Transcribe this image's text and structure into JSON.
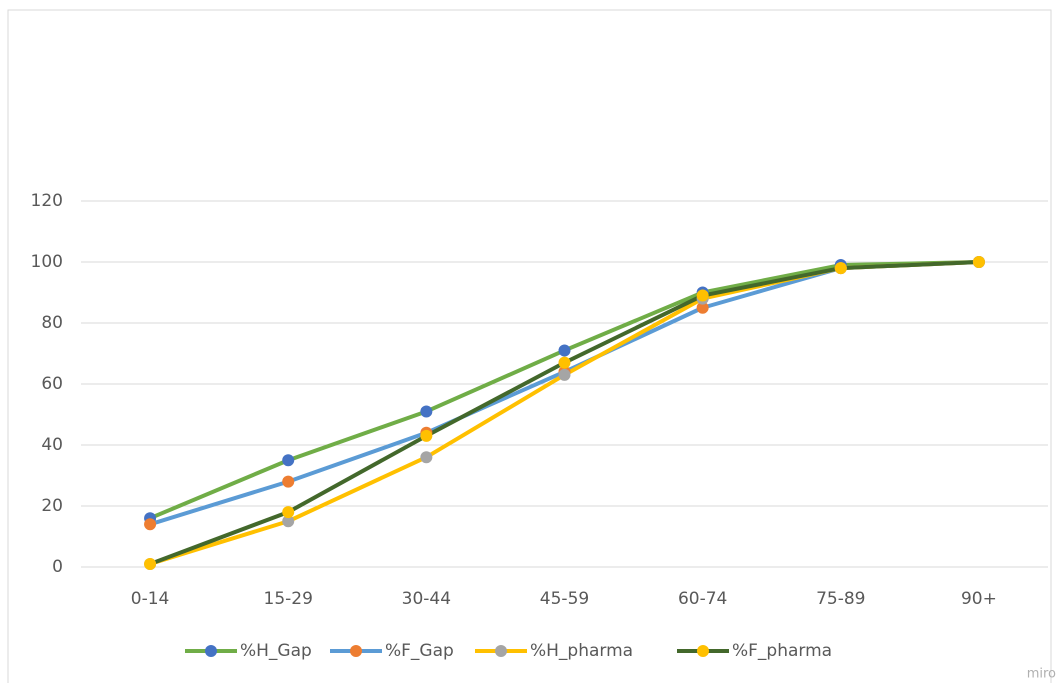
{
  "chart_data": {
    "type": "line",
    "categories": [
      "0-14",
      "15-29",
      "30-44",
      "45-59",
      "60-74",
      "75-89",
      "90+"
    ],
    "series": [
      {
        "name": "%H_Gap",
        "color": "#70ad47",
        "marker_color": "#4472c4",
        "values": [
          16,
          35,
          51,
          71,
          90,
          99,
          100
        ]
      },
      {
        "name": "%F_Gap",
        "color": "#5b9bd5",
        "marker_color": "#ed7d31",
        "values": [
          14,
          28,
          44,
          64,
          85,
          98,
          100
        ]
      },
      {
        "name": "%H_pharma",
        "color": "#ffc000",
        "marker_color": "#a5a5a5",
        "values": [
          1,
          15,
          36,
          63,
          88,
          98,
          100
        ]
      },
      {
        "name": "%F_pharma",
        "color": "#43682b",
        "marker_color": "#ffc000",
        "values": [
          1,
          18,
          43,
          67,
          89,
          98,
          100
        ]
      }
    ],
    "ylim": [
      0,
      120
    ],
    "yticks": [
      0,
      20,
      40,
      60,
      80,
      100,
      120
    ],
    "grid": true,
    "legend": "bottom",
    "watermark": "miro"
  }
}
